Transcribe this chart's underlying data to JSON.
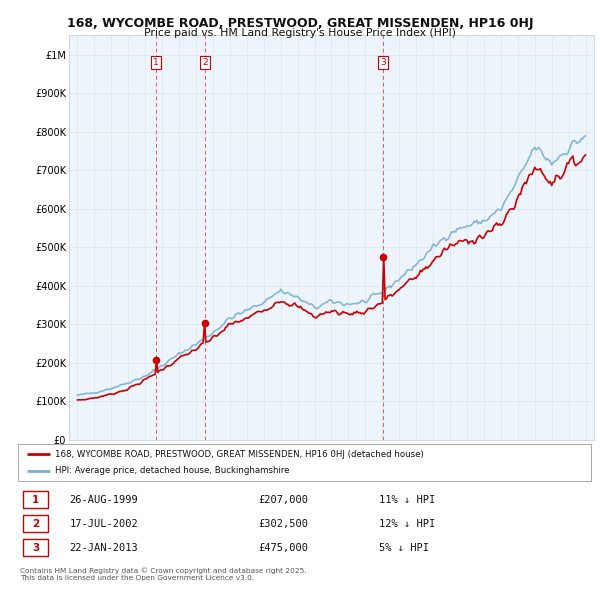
{
  "title": "168, WYCOMBE ROAD, PRESTWOOD, GREAT MISSENDEN, HP16 0HJ",
  "subtitle": "Price paid vs. HM Land Registry's House Price Index (HPI)",
  "legend_label_red": "168, WYCOMBE ROAD, PRESTWOOD, GREAT MISSENDEN, HP16 0HJ (detached house)",
  "legend_label_blue": "HPI: Average price, detached house, Buckinghamshire",
  "footer": "Contains HM Land Registry data © Crown copyright and database right 2025.\nThis data is licensed under the Open Government Licence v3.0.",
  "transactions": [
    {
      "num": 1,
      "date": "26-AUG-1999",
      "price": "£207,000",
      "hpi": "11% ↓ HPI",
      "x": 1999.65
    },
    {
      "num": 2,
      "date": "17-JUL-2002",
      "price": "£302,500",
      "hpi": "12% ↓ HPI",
      "x": 2002.54
    },
    {
      "num": 3,
      "date": "22-JAN-2013",
      "price": "£475,000",
      "hpi": "5% ↓ HPI",
      "x": 2013.06
    }
  ],
  "transaction_prices": [
    207000,
    302500,
    475000
  ],
  "red_color": "#cc0000",
  "blue_color": "#7ab0d4",
  "grid_color": "#dde8f0",
  "bg_color": "#ffffff",
  "plot_bg_color": "#eef4fb",
  "xlim": [
    1994.5,
    2025.5
  ],
  "ylim": [
    0,
    1050000
  ]
}
